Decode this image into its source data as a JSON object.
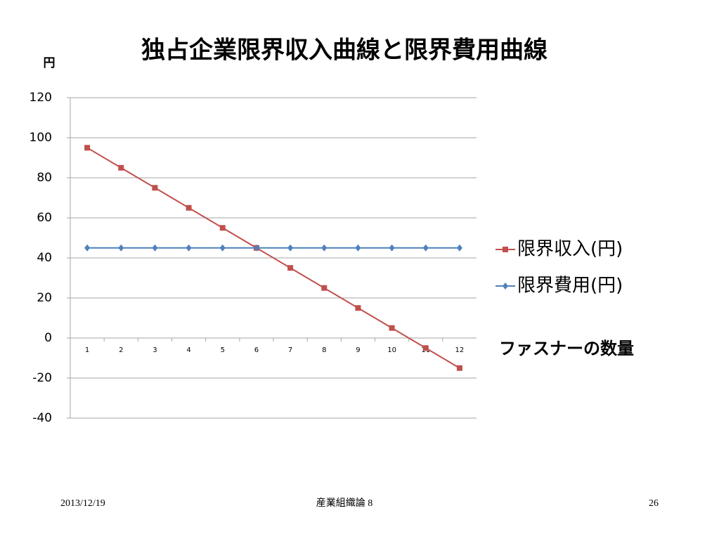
{
  "chart_data": {
    "type": "line",
    "title": "独占企業限界収入曲線と限界費用曲線",
    "y_label": "円",
    "x_label": "ファスナーの数量",
    "categories": [
      "1",
      "2",
      "3",
      "4",
      "5",
      "6",
      "7",
      "8",
      "9",
      "10",
      "11",
      "12"
    ],
    "series": [
      {
        "name": "限界収入(円)",
        "color": "#c0504d",
        "marker": "square",
        "values": [
          95,
          85,
          75,
          65,
          55,
          45,
          35,
          25,
          15,
          5,
          -5,
          -15
        ]
      },
      {
        "name": "限界費用(円)",
        "color": "#4f81bd",
        "marker": "diamond",
        "values": [
          45,
          45,
          45,
          45,
          45,
          45,
          45,
          45,
          45,
          45,
          45,
          45
        ]
      }
    ],
    "ylim": [
      -40,
      120
    ],
    "yticks": [
      -40,
      -20,
      0,
      20,
      40,
      60,
      80,
      100,
      120
    ],
    "grid": true,
    "legend": "right"
  },
  "footer": {
    "date": "2013/12/19",
    "center": "産業組織論 8",
    "page": "26"
  }
}
